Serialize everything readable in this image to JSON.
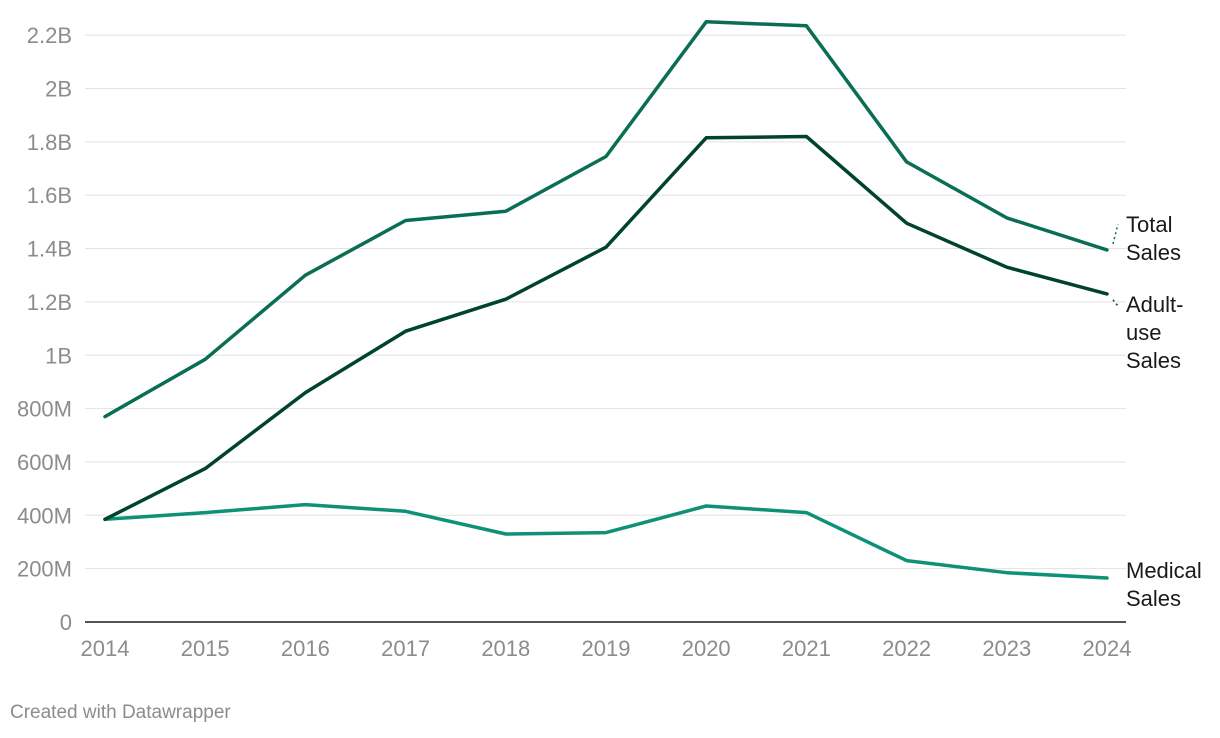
{
  "chart_data": {
    "type": "line",
    "title": "",
    "xlabel": "",
    "ylabel": "",
    "x": [
      "2014",
      "2015",
      "2016",
      "2017",
      "2018",
      "2019",
      "2020",
      "2021",
      "2022",
      "2023",
      "2024"
    ],
    "ylim": [
      0,
      2300000000
    ],
    "y_ticks": [
      0,
      200000000,
      400000000,
      600000000,
      800000000,
      1000000000,
      1200000000,
      1400000000,
      1600000000,
      1800000000,
      2000000000,
      2200000000
    ],
    "y_tick_labels": [
      "0",
      "200M",
      "400M",
      "600M",
      "800M",
      "1B",
      "1.2B",
      "1.4B",
      "1.6B",
      "1.8B",
      "2B",
      "2.2B"
    ],
    "grid": "horizontal",
    "legend": "direct labels at line ends (right)",
    "series": [
      {
        "name": "Total Sales",
        "label_lines": [
          "Total",
          "Sales"
        ],
        "color": "#0a6e55",
        "values": [
          770000000,
          985000000,
          1300000000,
          1505000000,
          1540000000,
          1745000000,
          2250000000,
          2235000000,
          1725000000,
          1515000000,
          1395000000
        ]
      },
      {
        "name": "Adult-use Sales",
        "label_lines": [
          "Adult-",
          "use",
          "Sales"
        ],
        "color": "#00432e",
        "values": [
          385000000,
          575000000,
          860000000,
          1090000000,
          1210000000,
          1405000000,
          1815000000,
          1820000000,
          1495000000,
          1330000000,
          1230000000
        ]
      },
      {
        "name": "Medical Sales",
        "label_lines": [
          "Medical",
          "Sales"
        ],
        "color": "#0f9177",
        "values": [
          385000000,
          410000000,
          440000000,
          415000000,
          330000000,
          335000000,
          435000000,
          410000000,
          230000000,
          185000000,
          165000000
        ]
      }
    ]
  },
  "footer": {
    "credit": "Created with Datawrapper"
  }
}
